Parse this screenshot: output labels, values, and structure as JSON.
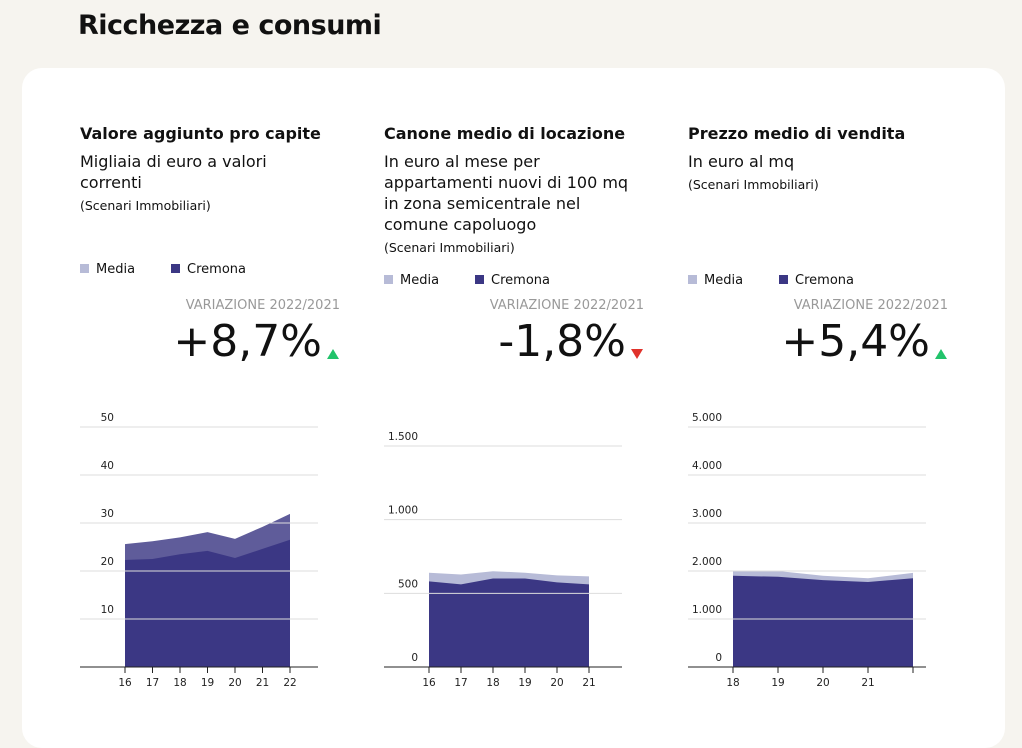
{
  "title": "Ricchezza e consumi",
  "chart_data": [
    {
      "type": "area",
      "title": "Valore aggiunto pro capite",
      "subtitle": "Migliaia di euro a valori correnti",
      "source": "(Scenari Immobiliari)",
      "variation_label": "VARIAZIONE 2022/2021",
      "variation": "+8,7%",
      "categories": [
        "16",
        "17",
        "18",
        "19",
        "20",
        "21",
        "22"
      ],
      "series": [
        {
          "name": "Media",
          "color": "#5f5c9a",
          "values": [
            25.6,
            26.2,
            27,
            28.1,
            26.7,
            29.2,
            31.9
          ]
        },
        {
          "name": "Cremona",
          "color": "#3b3784",
          "values": [
            22.3,
            22.5,
            23.5,
            24.2,
            22.7,
            24.6,
            26.5
          ]
        }
      ],
      "ylim": [
        0,
        50
      ],
      "yticks": [
        10,
        20,
        30,
        40,
        50
      ],
      "grid": true
    },
    {
      "type": "area",
      "title": "Canone medio di locazione",
      "subtitle": "In euro al mese per appartamenti nuovi di 100 mq in zona semicentrale nel comune capoluogo",
      "source": "(Scenari Immobiliari)",
      "variation_label": "VARIAZIONE 2022/2021",
      "variation": "-1,8%",
      "categories": [
        "16",
        "17",
        "18",
        "19",
        "20",
        "21"
      ],
      "series": [
        {
          "name": "Media",
          "color": "#b7bbd7",
          "values": [
            640,
            628,
            650,
            640,
            622,
            615
          ]
        },
        {
          "name": "Cremona",
          "color": "#3b3784",
          "values": [
            581,
            561,
            601,
            601,
            574,
            561
          ]
        }
      ],
      "ylim": [
        0,
        1500
      ],
      "yticks": [
        0,
        500,
        {
          "value": 1000,
          "label": "1.000"
        },
        {
          "value": 1500,
          "label": "1.500"
        }
      ],
      "grid": true
    },
    {
      "type": "area",
      "title": "Prezzo medio di vendita",
      "subtitle": "In euro al mq",
      "source": "(Scenari Immobiliari)",
      "variation_label": "VARIAZIONE 2022/2021",
      "variation": "+5,4%",
      "categories": [
        "18",
        "19",
        "20",
        "21",
        null
      ],
      "series": [
        {
          "name": "Media",
          "color": "#b7bbd7",
          "values": [
            2000,
            2000,
            1900,
            1850,
            1960
          ]
        },
        {
          "name": "Cremona",
          "color": "#3b3784",
          "values": [
            1900,
            1880,
            1810,
            1770,
            1850
          ]
        }
      ],
      "ylim": [
        0,
        5000
      ],
      "yticks": [
        0,
        {
          "value": 1000,
          "label": "1.000"
        },
        {
          "value": 2000,
          "label": "2.000"
        },
        {
          "value": 3000,
          "label": "3.000"
        },
        {
          "value": 4000,
          "label": "4.000"
        },
        {
          "value": 5000,
          "label": "5.000"
        }
      ],
      "grid": true
    }
  ]
}
